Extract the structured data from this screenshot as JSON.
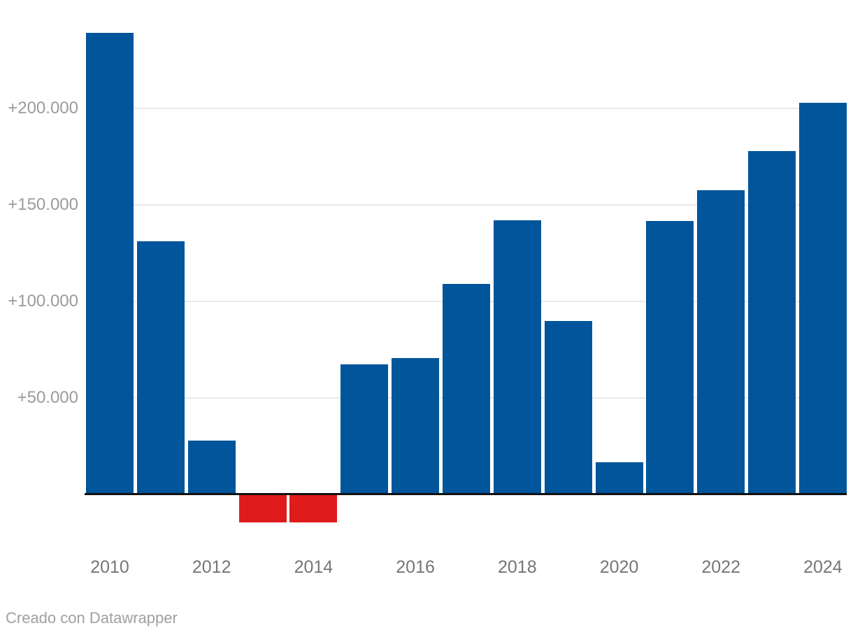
{
  "chart_data": {
    "type": "bar",
    "categories": [
      "2010",
      "2011",
      "2012",
      "2013",
      "2014",
      "2015",
      "2016",
      "2017",
      "2018",
      "2019",
      "2020",
      "2021",
      "2022",
      "2023",
      "2024"
    ],
    "values": [
      239000,
      131000,
      28000,
      -14500,
      -14500,
      67500,
      70500,
      109000,
      142000,
      90000,
      16500,
      141500,
      157500,
      178000,
      203000
    ],
    "y_axis": {
      "ticks": [
        {
          "value": 200000,
          "label": "+200.000"
        },
        {
          "value": 150000,
          "label": "+150.000"
        },
        {
          "value": 100000,
          "label": "+100.000"
        },
        {
          "value": 50000,
          "label": "+50.000"
        }
      ]
    },
    "x_axis": {
      "labels": [
        "2010",
        "2012",
        "2014",
        "2016",
        "2018",
        "2020",
        "2022",
        "2024"
      ]
    },
    "ylim": [
      -25000,
      245000
    ],
    "grid": true,
    "legend": "none",
    "colors": {
      "bar_positive": "#00559b",
      "bar_negative": "#e01b1c",
      "gridline": "#e9e9e9",
      "axis_line": "#111111",
      "y_tick_text": "#9b9b9b",
      "x_tick_text": "#757575",
      "footer_text": "#a0a0a0",
      "background": "#ffffff"
    },
    "footer": "Creado con Datawrapper"
  }
}
